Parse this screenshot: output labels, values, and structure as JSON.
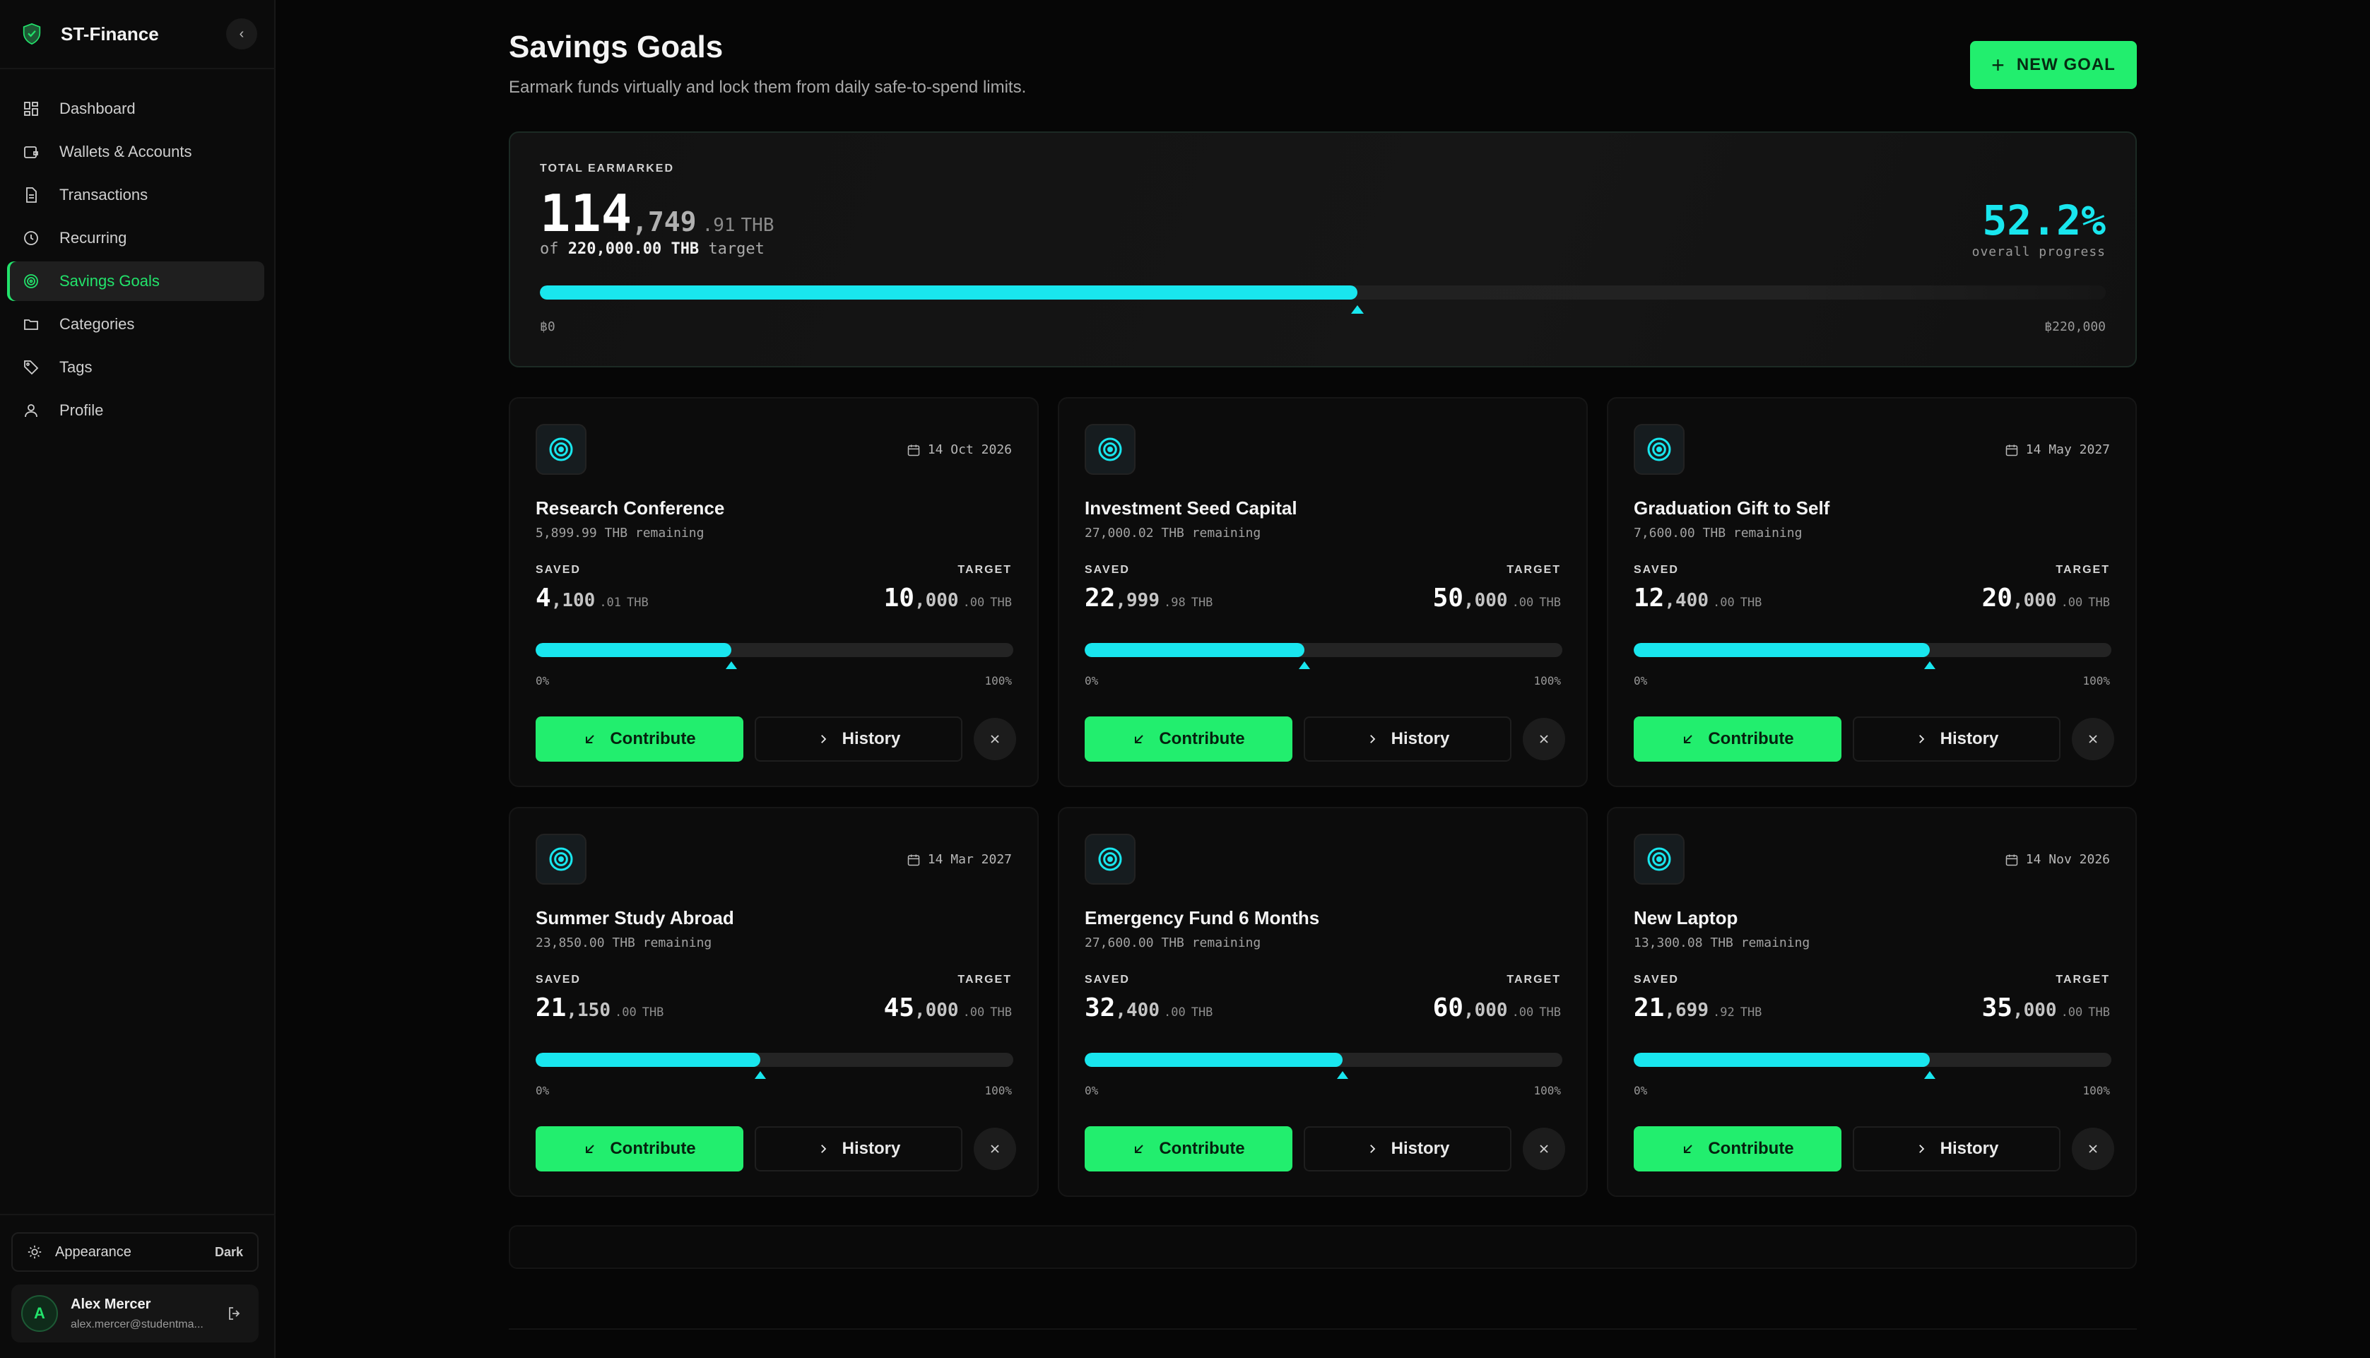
{
  "app": {
    "name": "ST-Finance",
    "logo_icon": "shield-icon",
    "collapse_label": "‹"
  },
  "sidebar": {
    "items": [
      {
        "label": "Dashboard",
        "icon": "dashboard-icon",
        "active": false
      },
      {
        "label": "Wallets & Accounts",
        "icon": "wallet-icon",
        "active": false
      },
      {
        "label": "Transactions",
        "icon": "document-icon",
        "active": false
      },
      {
        "label": "Recurring",
        "icon": "clock-icon",
        "active": false
      },
      {
        "label": "Savings Goals",
        "icon": "target-icon",
        "active": true
      },
      {
        "label": "Categories",
        "icon": "folder-icon",
        "active": false
      },
      {
        "label": "Tags",
        "icon": "tag-icon",
        "active": false
      },
      {
        "label": "Profile",
        "icon": "user-icon",
        "active": false
      }
    ],
    "appearance": {
      "label": "Appearance",
      "mode": "Dark"
    },
    "user": {
      "initial": "A",
      "name": "Alex Mercer",
      "email": "alex.mercer@studentma..."
    }
  },
  "header": {
    "title": "Savings Goals",
    "subtitle": "Earmark funds virtually and lock them from daily safe-to-spend limits.",
    "new_goal_label": "NEW GOAL"
  },
  "summary": {
    "label": "TOTAL EARMARKED",
    "amount_int": "114",
    "amount_thousands": ",749",
    "amount_cents": ".91",
    "currency": "THB",
    "target_prefix": "of",
    "target_value": "220,000.00 THB",
    "target_suffix": "target",
    "progress_pct": "52.2%",
    "progress_fraction": 0.522,
    "progress_label": "overall progress",
    "min_label": "฿0",
    "max_label": "฿220,000"
  },
  "labels": {
    "saved": "SAVED",
    "target": "TARGET",
    "pmin": "0%",
    "pmax": "100%",
    "contribute": "Contribute",
    "history": "History",
    "currency": "THB"
  },
  "goals": [
    {
      "name": "Research Conference",
      "date": "14 Oct 2026",
      "remaining": "5,899.99 THB remaining",
      "saved_i": "4",
      "saved_d": ",100",
      "saved_c": ".01",
      "target_i": "10",
      "target_d": ",000",
      "target_c": ".00",
      "progress": 0.41
    },
    {
      "name": "Investment Seed Capital",
      "date": "",
      "remaining": "27,000.02 THB remaining",
      "saved_i": "22",
      "saved_d": ",999",
      "saved_c": ".98",
      "target_i": "50",
      "target_d": ",000",
      "target_c": ".00",
      "progress": 0.46
    },
    {
      "name": "Graduation Gift to Self",
      "date": "14 May 2027",
      "remaining": "7,600.00 THB remaining",
      "saved_i": "12",
      "saved_d": ",400",
      "saved_c": ".00",
      "target_i": "20",
      "target_d": ",000",
      "target_c": ".00",
      "progress": 0.62
    },
    {
      "name": "Summer Study Abroad",
      "date": "14 Mar 2027",
      "remaining": "23,850.00 THB remaining",
      "saved_i": "21",
      "saved_d": ",150",
      "saved_c": ".00",
      "target_i": "45",
      "target_d": ",000",
      "target_c": ".00",
      "progress": 0.47
    },
    {
      "name": "Emergency Fund 6 Months",
      "date": "",
      "remaining": "27,600.00 THB remaining",
      "saved_i": "32",
      "saved_d": ",400",
      "saved_c": ".00",
      "target_i": "60",
      "target_d": ",000",
      "target_c": ".00",
      "progress": 0.54
    },
    {
      "name": "New Laptop",
      "date": "14 Nov 2026",
      "remaining": "13,300.08 THB remaining",
      "saved_i": "21",
      "saved_d": ",699",
      "saved_c": ".92",
      "target_i": "35",
      "target_d": ",000",
      "target_c": ".00",
      "progress": 0.62
    }
  ],
  "colors": {
    "accent_green": "#22ee6e",
    "accent_cyan": "#19e6ee",
    "background": "#060606"
  }
}
